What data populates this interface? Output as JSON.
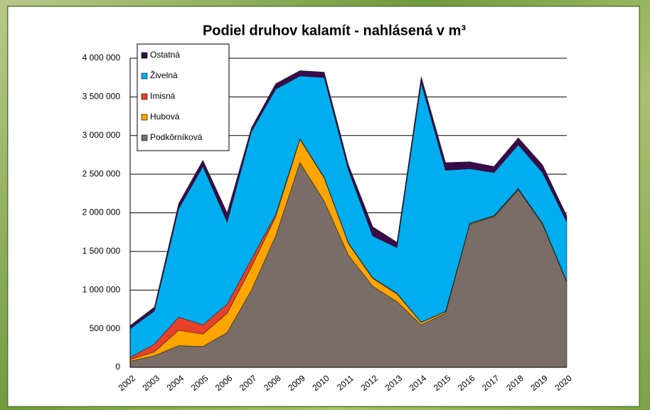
{
  "chart_data": {
    "type": "stacked_area",
    "title": "Podiel druhov kalamít - nahlásená v m³",
    "x": [
      "2002",
      "2003",
      "2004",
      "2005",
      "2006",
      "2007",
      "2008",
      "2009",
      "2010",
      "2011",
      "2012",
      "2013",
      "2014",
      "2015",
      "2016",
      "2017",
      "2018",
      "2019",
      "2020"
    ],
    "series": [
      {
        "name": "Podkôrníková",
        "color": "#7a6c66",
        "values": [
          80000,
          150000,
          280000,
          270000,
          450000,
          1000000,
          1700000,
          2650000,
          2150000,
          1450000,
          1050000,
          850000,
          550000,
          700000,
          1850000,
          1950000,
          2300000,
          1850000,
          1100000
        ]
      },
      {
        "name": "Hubová",
        "color": "#ffa500",
        "values": [
          20000,
          50000,
          200000,
          160000,
          250000,
          300000,
          250000,
          300000,
          300000,
          150000,
          100000,
          100000,
          30000,
          20000,
          10000,
          10000,
          10000,
          10000,
          10000
        ]
      },
      {
        "name": "Imisná",
        "color": "#e8402a",
        "values": [
          30000,
          100000,
          170000,
          120000,
          120000,
          100000,
          30000,
          10000,
          10000,
          10000,
          10000,
          10000,
          5000,
          5000,
          5000,
          5000,
          5000,
          5000,
          5000
        ]
      },
      {
        "name": "Živelná",
        "color": "#00aeef",
        "values": [
          370000,
          430000,
          1400000,
          2050000,
          1060000,
          1650000,
          1620000,
          810000,
          1290000,
          940000,
          540000,
          590000,
          3095000,
          1825000,
          705000,
          555000,
          565000,
          655000,
          765000
        ]
      },
      {
        "name": "Ostatná",
        "color": "#3a0a4a",
        "values": [
          40000,
          50000,
          70000,
          80000,
          120000,
          50000,
          70000,
          70000,
          70000,
          70000,
          120000,
          70000,
          80000,
          100000,
          90000,
          80000,
          90000,
          100000,
          80000
        ]
      }
    ],
    "ylim": [
      0,
      4000000
    ],
    "yticks": [
      0,
      {
        "value": 500000,
        "label": "500 000"
      },
      {
        "value": 1000000,
        "label": "1 000 000"
      },
      {
        "value": 1500000,
        "label": "1 500 000"
      },
      {
        "value": 2000000,
        "label": "2 000 000"
      },
      {
        "value": 2500000,
        "label": "2 500 000"
      },
      {
        "value": 3000000,
        "label": "3 000 000"
      },
      {
        "value": 3500000,
        "label": "3 500 000"
      },
      {
        "value": 4000000,
        "label": "4 000 000"
      }
    ],
    "grid": true,
    "legend": "upper left"
  }
}
